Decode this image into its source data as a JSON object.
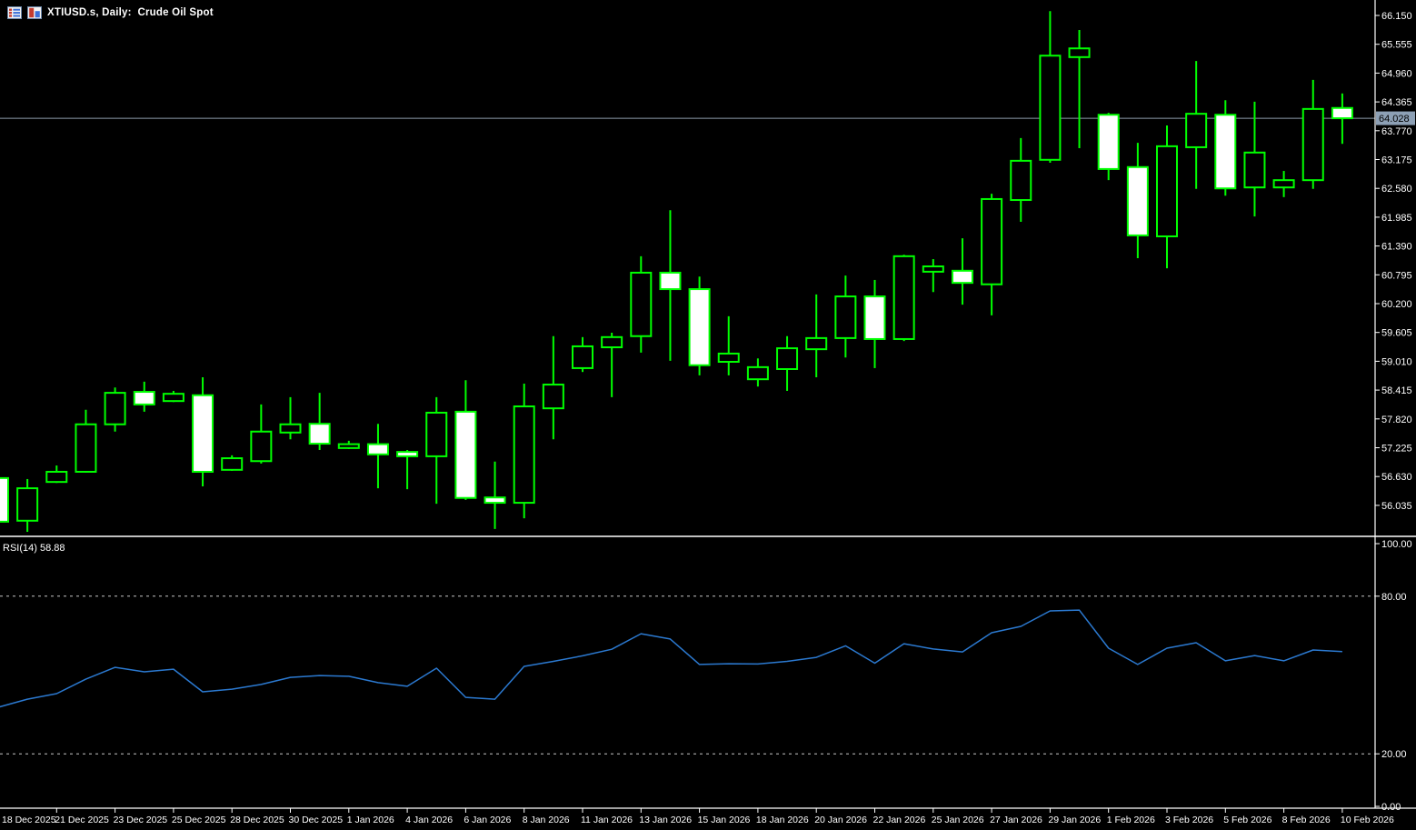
{
  "header": {
    "title": "XTIUSD.s, Daily:  Crude Oil Spot"
  },
  "indicator_label": "RSI(14) 58.88",
  "colors": {
    "background": "#000000",
    "candle_outline": "#00FF00",
    "bull_fill": "#000000",
    "bear_fill": "#FFFFFF",
    "axis_text": "#FFFFFF",
    "axis_line": "#FFFFFF",
    "bid_line": "#8C9BAA",
    "bid_label_bg": "#8DA0B5",
    "bid_label_text": "#000000",
    "rsi_line": "#2B79D0",
    "level_line": "#C8C8C8"
  },
  "chart_data": {
    "type": "candlestick",
    "symbol": "XTIUSD.s",
    "timeframe": "Daily",
    "description": "Crude Oil Spot",
    "bid": {
      "value": 64.028,
      "label": "64.028"
    },
    "price_axis_labels": [
      "66.150",
      "65.555",
      "64.960",
      "64.365",
      "63.770",
      "63.175",
      "62.580",
      "61.985",
      "61.390",
      "60.795",
      "60.200",
      "59.605",
      "59.010",
      "58.415",
      "57.820",
      "57.225",
      "56.630",
      "56.035"
    ],
    "date_labels": [
      "18 Dec 2025",
      "21 Dec 2025",
      "23 Dec 2025",
      "25 Dec 2025",
      "28 Dec 2025",
      "30 Dec 2025",
      "1 Jan 2026",
      "4 Jan 2026",
      "6 Jan 2026",
      "8 Jan 2026",
      "11 Jan 2026",
      "13 Jan 2026",
      "15 Jan 2026",
      "18 Jan 2026",
      "20 Jan 2026",
      "22 Jan 2026",
      "25 Jan 2026",
      "27 Jan 2026",
      "29 Jan 2026",
      "1 Feb 2026",
      "3 Feb 2026",
      "5 Feb 2026",
      "8 Feb 2026",
      "10 Feb 2026"
    ],
    "candles": [
      {
        "o": 56.6,
        "h": 56.62,
        "l": 55.68,
        "c": 55.7
      },
      {
        "o": 55.72,
        "h": 56.58,
        "l": 55.49,
        "c": 56.39
      },
      {
        "o": 56.52,
        "h": 56.86,
        "l": 56.5,
        "c": 56.73
      },
      {
        "o": 56.73,
        "h": 58.01,
        "l": 56.71,
        "c": 57.71
      },
      {
        "o": 57.71,
        "h": 58.47,
        "l": 57.56,
        "c": 58.36
      },
      {
        "o": 58.38,
        "h": 58.59,
        "l": 57.97,
        "c": 58.12
      },
      {
        "o": 58.19,
        "h": 58.4,
        "l": 58.17,
        "c": 58.34
      },
      {
        "o": 58.31,
        "h": 58.68,
        "l": 56.43,
        "c": 56.73
      },
      {
        "o": 56.77,
        "h": 57.07,
        "l": 56.75,
        "c": 57.01
      },
      {
        "o": 56.95,
        "h": 58.12,
        "l": 56.9,
        "c": 57.56
      },
      {
        "o": 57.54,
        "h": 58.27,
        "l": 57.4,
        "c": 57.71
      },
      {
        "o": 57.72,
        "h": 58.36,
        "l": 57.18,
        "c": 57.31
      },
      {
        "o": 57.22,
        "h": 57.37,
        "l": 57.2,
        "c": 57.3
      },
      {
        "o": 57.3,
        "h": 57.72,
        "l": 56.39,
        "c": 57.09
      },
      {
        "o": 57.14,
        "h": 57.18,
        "l": 56.37,
        "c": 57.05
      },
      {
        "o": 57.05,
        "h": 58.27,
        "l": 56.07,
        "c": 57.95
      },
      {
        "o": 57.97,
        "h": 58.62,
        "l": 56.15,
        "c": 56.19
      },
      {
        "o": 56.2,
        "h": 56.94,
        "l": 55.55,
        "c": 56.09
      },
      {
        "o": 56.09,
        "h": 58.55,
        "l": 55.77,
        "c": 58.08
      },
      {
        "o": 58.04,
        "h": 59.53,
        "l": 57.4,
        "c": 58.53
      },
      {
        "o": 58.87,
        "h": 59.51,
        "l": 58.79,
        "c": 59.32
      },
      {
        "o": 59.3,
        "h": 59.6,
        "l": 58.27,
        "c": 59.51
      },
      {
        "o": 59.53,
        "h": 61.18,
        "l": 59.19,
        "c": 60.84
      },
      {
        "o": 60.84,
        "h": 62.13,
        "l": 59.02,
        "c": 60.5
      },
      {
        "o": 60.5,
        "h": 60.76,
        "l": 58.72,
        "c": 58.93
      },
      {
        "o": 59.0,
        "h": 59.94,
        "l": 58.72,
        "c": 59.17
      },
      {
        "o": 58.64,
        "h": 59.07,
        "l": 58.49,
        "c": 58.89
      },
      {
        "o": 58.85,
        "h": 59.53,
        "l": 58.4,
        "c": 59.28
      },
      {
        "o": 59.26,
        "h": 60.39,
        "l": 58.68,
        "c": 59.49
      },
      {
        "o": 59.49,
        "h": 60.78,
        "l": 59.09,
        "c": 60.35
      },
      {
        "o": 60.35,
        "h": 60.69,
        "l": 58.87,
        "c": 59.47
      },
      {
        "o": 59.47,
        "h": 61.21,
        "l": 59.43,
        "c": 61.18
      },
      {
        "o": 60.86,
        "h": 61.12,
        "l": 60.44,
        "c": 60.97
      },
      {
        "o": 60.88,
        "h": 61.55,
        "l": 60.18,
        "c": 60.63
      },
      {
        "o": 60.6,
        "h": 62.47,
        "l": 59.96,
        "c": 62.36
      },
      {
        "o": 62.34,
        "h": 63.62,
        "l": 61.89,
        "c": 63.15
      },
      {
        "o": 63.17,
        "h": 66.24,
        "l": 63.11,
        "c": 65.32
      },
      {
        "o": 65.29,
        "h": 65.85,
        "l": 63.41,
        "c": 65.47
      },
      {
        "o": 64.1,
        "h": 64.14,
        "l": 62.75,
        "c": 62.98
      },
      {
        "o": 63.02,
        "h": 63.52,
        "l": 61.14,
        "c": 61.61
      },
      {
        "o": 61.59,
        "h": 63.88,
        "l": 60.93,
        "c": 63.45
      },
      {
        "o": 63.43,
        "h": 65.21,
        "l": 62.57,
        "c": 64.12
      },
      {
        "o": 64.1,
        "h": 64.4,
        "l": 62.43,
        "c": 62.58
      },
      {
        "o": 62.6,
        "h": 64.37,
        "l": 62.0,
        "c": 63.32
      },
      {
        "o": 62.6,
        "h": 62.94,
        "l": 62.4,
        "c": 62.75
      },
      {
        "o": 62.75,
        "h": 64.82,
        "l": 62.57,
        "c": 64.22
      },
      {
        "o": 64.24,
        "h": 64.54,
        "l": 63.5,
        "c": 64.028
      }
    ],
    "indicator": {
      "type": "line",
      "name": "RSI",
      "period": 14,
      "current_value": 58.88,
      "range": [
        0,
        100
      ],
      "levels": [
        80,
        20
      ],
      "axis_labels": [
        {
          "label": "100.00",
          "value": 100
        },
        {
          "label": "80.00",
          "value": 80
        },
        {
          "label": "20.00",
          "value": 20
        },
        {
          "label": "0.00",
          "value": 0
        }
      ],
      "values": [
        37.7,
        40.8,
        42.9,
        48.4,
        52.9,
        51.2,
        52.2,
        43.6,
        44.6,
        46.4,
        49.1,
        49.8,
        49.5,
        47.1,
        45.7,
        52.6,
        41.5,
        40.8,
        53.3,
        55.2,
        57.3,
        59.8,
        65.7,
        63.7,
        54.0,
        54.3,
        54.2,
        55.2,
        56.7,
        61.1,
        54.5,
        61.9,
        59.9,
        58.8,
        66.1,
        68.5,
        74.4,
        74.7,
        60.2,
        54.0,
        60.2,
        62.3,
        55.4,
        57.4,
        55.4,
        59.5,
        58.88
      ]
    }
  }
}
